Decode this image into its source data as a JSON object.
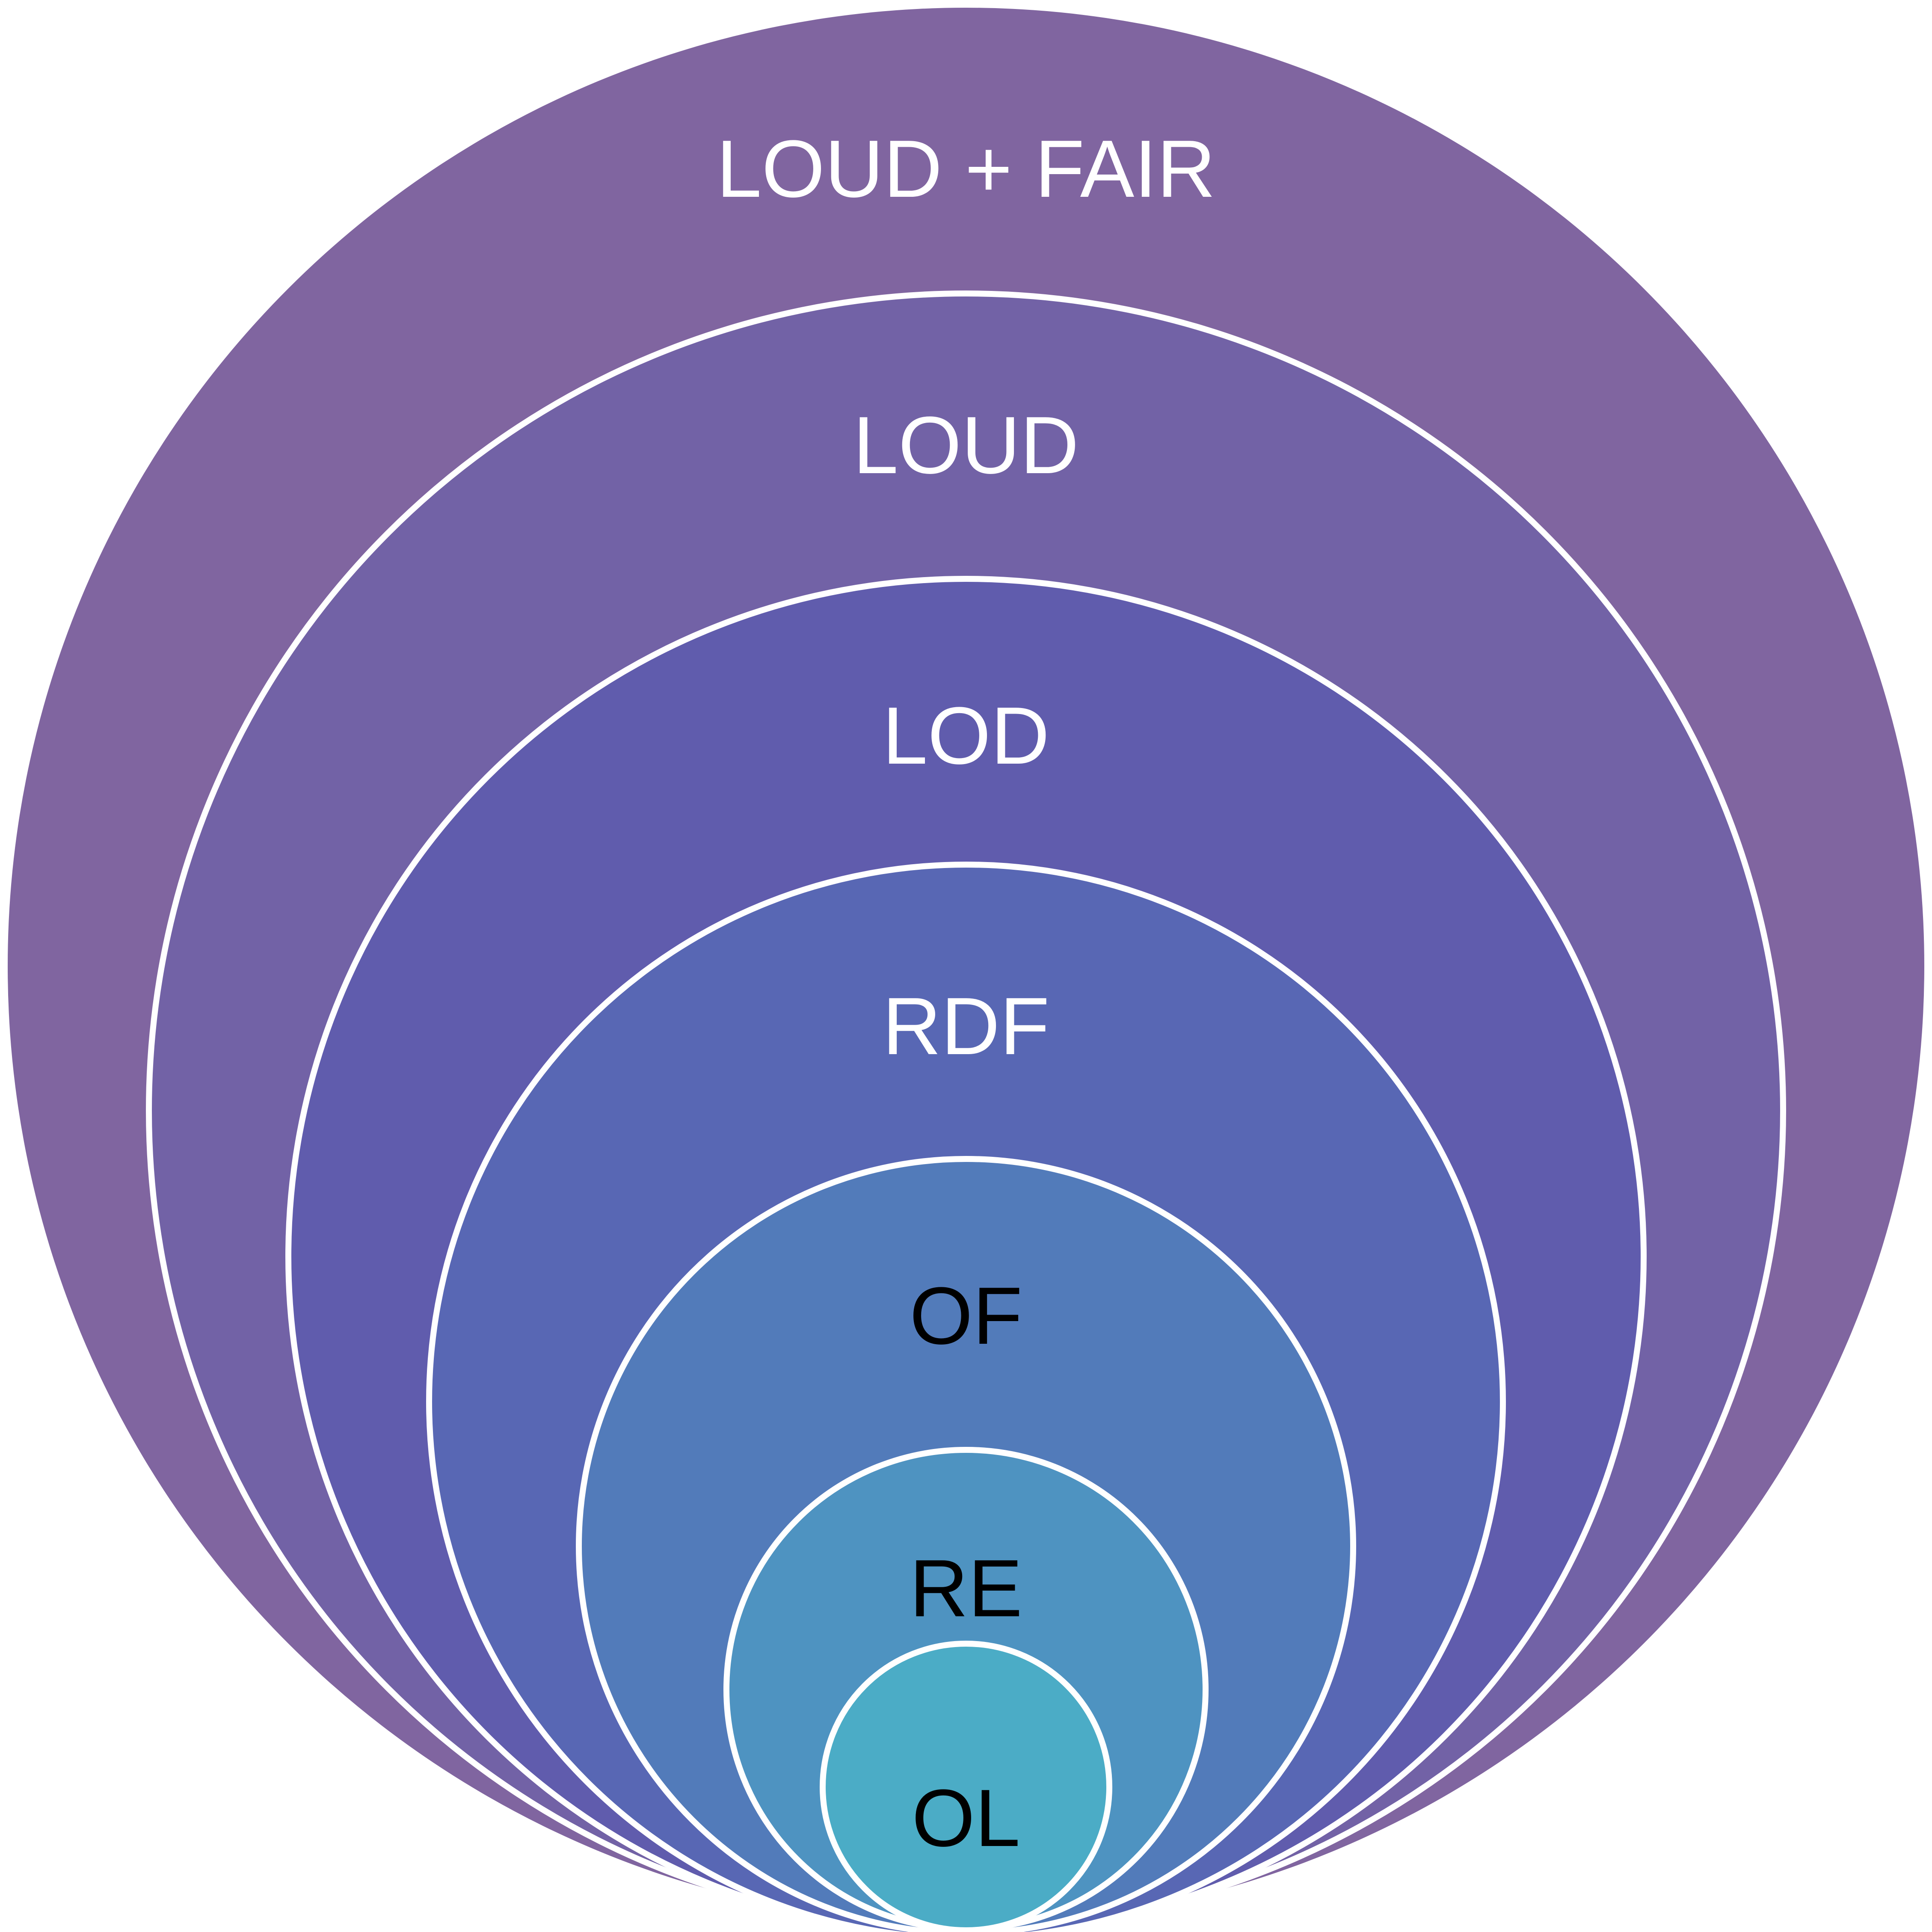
{
  "diagram": {
    "type": "nested-circles",
    "rings": [
      {
        "label": "LOUD + FAIR",
        "fill": "#8065A0",
        "label_color": "#FFFFFF"
      },
      {
        "label": "LOUD",
        "fill": "#7262A6",
        "label_color": "#FFFFFF"
      },
      {
        "label": "LOD",
        "fill": "#605CAD",
        "label_color": "#FFFFFF"
      },
      {
        "label": "RDF",
        "fill": "#5867B4",
        "label_color": "#FFFFFF"
      },
      {
        "label": "OF",
        "fill": "#527BBA",
        "label_color": "#000000"
      },
      {
        "label": "RE",
        "fill": "#4E93C1",
        "label_color": "#000000"
      },
      {
        "label": "OL",
        "fill": "#4BACC6",
        "label_color": "#000000"
      }
    ],
    "stroke_color": "#FFFFFF"
  }
}
